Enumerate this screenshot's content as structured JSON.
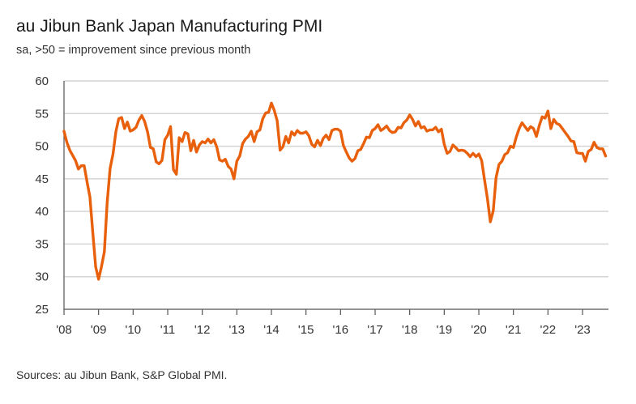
{
  "title": "au Jibun Bank Japan Manufacturing PMI",
  "subtitle": "sa, >50 = improvement since previous month",
  "source": "Sources: au Jibun Bank, S&P Global PMI.",
  "colors": {
    "series": "#e8600c",
    "grid": "#d4d4d4",
    "axis": "#555555",
    "text": "#333333"
  },
  "chart_data": {
    "type": "line",
    "title": "au Jibun Bank Japan Manufacturing PMI",
    "subtitle": "sa, >50 = improvement since previous month",
    "xlabel": "",
    "ylabel": "",
    "ylim": [
      25,
      60
    ],
    "yticks": [
      25,
      30,
      35,
      40,
      45,
      50,
      55,
      60
    ],
    "xticks": [
      {
        "label": "'08",
        "year": 2008
      },
      {
        "label": "'09",
        "year": 2009
      },
      {
        "label": "'10",
        "year": 2010
      },
      {
        "label": "'11",
        "year": 2011
      },
      {
        "label": "'12",
        "year": 2012
      },
      {
        "label": "'13",
        "year": 2013
      },
      {
        "label": "'14",
        "year": 2014
      },
      {
        "label": "'15",
        "year": 2015
      },
      {
        "label": "'16",
        "year": 2016
      },
      {
        "label": "'17",
        "year": 2017
      },
      {
        "label": "'18",
        "year": 2018
      },
      {
        "label": "'19",
        "year": 2019
      },
      {
        "label": "'20",
        "year": 2020
      },
      {
        "label": "'21",
        "year": 2021
      },
      {
        "label": "'22",
        "year": 2022
      },
      {
        "label": "'23",
        "year": 2023
      }
    ],
    "xlim": [
      2008.0,
      2023.75
    ],
    "grid": true,
    "legend": "none",
    "series": [
      {
        "name": "Manufacturing PMI",
        "x": [
          2008.0,
          2008.083,
          2008.167,
          2008.25,
          2008.333,
          2008.417,
          2008.5,
          2008.583,
          2008.667,
          2008.75,
          2008.833,
          2008.917,
          2009.0,
          2009.083,
          2009.167,
          2009.25,
          2009.333,
          2009.417,
          2009.5,
          2009.583,
          2009.667,
          2009.75,
          2009.833,
          2009.917,
          2010.0,
          2010.083,
          2010.167,
          2010.25,
          2010.333,
          2010.417,
          2010.5,
          2010.583,
          2010.667,
          2010.75,
          2010.833,
          2010.917,
          2011.0,
          2011.083,
          2011.167,
          2011.25,
          2011.333,
          2011.417,
          2011.5,
          2011.583,
          2011.667,
          2011.75,
          2011.833,
          2011.917,
          2012.0,
          2012.083,
          2012.167,
          2012.25,
          2012.333,
          2012.417,
          2012.5,
          2012.583,
          2012.667,
          2012.75,
          2012.833,
          2012.917,
          2013.0,
          2013.083,
          2013.167,
          2013.25,
          2013.333,
          2013.417,
          2013.5,
          2013.583,
          2013.667,
          2013.75,
          2013.833,
          2013.917,
          2014.0,
          2014.083,
          2014.167,
          2014.25,
          2014.333,
          2014.417,
          2014.5,
          2014.583,
          2014.667,
          2014.75,
          2014.833,
          2014.917,
          2015.0,
          2015.083,
          2015.167,
          2015.25,
          2015.333,
          2015.417,
          2015.5,
          2015.583,
          2015.667,
          2015.75,
          2015.833,
          2015.917,
          2016.0,
          2016.083,
          2016.167,
          2016.25,
          2016.333,
          2016.417,
          2016.5,
          2016.583,
          2016.667,
          2016.75,
          2016.833,
          2016.917,
          2017.0,
          2017.083,
          2017.167,
          2017.25,
          2017.333,
          2017.417,
          2017.5,
          2017.583,
          2017.667,
          2017.75,
          2017.833,
          2017.917,
          2018.0,
          2018.083,
          2018.167,
          2018.25,
          2018.333,
          2018.417,
          2018.5,
          2018.583,
          2018.667,
          2018.75,
          2018.833,
          2018.917,
          2019.0,
          2019.083,
          2019.167,
          2019.25,
          2019.333,
          2019.417,
          2019.5,
          2019.583,
          2019.667,
          2019.75,
          2019.833,
          2019.917,
          2020.0,
          2020.083,
          2020.167,
          2020.25,
          2020.333,
          2020.417,
          2020.5,
          2020.583,
          2020.667,
          2020.75,
          2020.833,
          2020.917,
          2021.0,
          2021.083,
          2021.167,
          2021.25,
          2021.333,
          2021.417,
          2021.5,
          2021.583,
          2021.667,
          2021.75,
          2021.833,
          2021.917,
          2022.0,
          2022.083,
          2022.167,
          2022.25,
          2022.333,
          2022.417,
          2022.5,
          2022.583,
          2022.667,
          2022.75,
          2022.833,
          2022.917,
          2023.0,
          2023.083,
          2023.167,
          2023.25,
          2023.333,
          2023.417,
          2023.5,
          2023.583,
          2023.667
        ],
        "values": [
          52.3,
          50.6,
          49.4,
          48.6,
          47.8,
          46.5,
          47.0,
          47.0,
          44.5,
          42.2,
          36.8,
          31.5,
          29.6,
          31.5,
          33.8,
          41.4,
          46.6,
          48.8,
          52.2,
          54.2,
          54.4,
          52.7,
          53.7,
          52.3,
          52.5,
          52.9,
          54.0,
          54.7,
          53.8,
          52.2,
          49.8,
          49.6,
          47.6,
          47.3,
          47.8,
          51.0,
          51.7,
          53.0,
          46.4,
          45.7,
          51.3,
          50.7,
          52.1,
          51.9,
          49.3,
          50.9,
          49.1,
          50.2,
          50.7,
          50.5,
          51.1,
          50.5,
          51.0,
          49.9,
          47.9,
          47.7,
          48.0,
          46.9,
          46.5,
          45.0,
          47.7,
          48.5,
          50.4,
          51.1,
          51.5,
          52.3,
          50.7,
          52.2,
          52.5,
          54.2,
          55.1,
          55.2,
          56.6,
          55.5,
          53.9,
          49.4,
          49.9,
          51.5,
          50.5,
          52.2,
          51.7,
          52.4,
          52.0,
          52.0,
          52.2,
          51.6,
          50.3,
          49.9,
          50.9,
          50.1,
          51.2,
          51.7,
          51.0,
          52.4,
          52.6,
          52.6,
          52.3,
          50.1,
          49.1,
          48.2,
          47.7,
          48.1,
          49.3,
          49.5,
          50.4,
          51.4,
          51.3,
          52.4,
          52.7,
          53.3,
          52.4,
          52.7,
          53.1,
          52.4,
          52.1,
          52.2,
          52.9,
          52.8,
          53.6,
          54.0,
          54.8,
          54.1,
          53.1,
          53.8,
          52.8,
          53.0,
          52.3,
          52.5,
          52.5,
          52.9,
          52.2,
          52.6,
          50.3,
          48.9,
          49.2,
          50.2,
          49.8,
          49.3,
          49.4,
          49.3,
          48.9,
          48.4,
          48.9,
          48.4,
          48.8,
          47.8,
          44.8,
          41.9,
          38.4,
          40.1,
          45.2,
          47.2,
          47.7,
          48.7,
          49.0,
          50.0,
          49.8,
          51.4,
          52.7,
          53.6,
          53.0,
          52.4,
          53.0,
          52.7,
          51.5,
          53.2,
          54.5,
          54.3,
          55.4,
          52.7,
          54.1,
          53.5,
          53.3,
          52.7,
          52.1,
          51.5,
          50.8,
          50.7,
          49.0,
          48.9,
          48.9,
          47.7,
          49.2,
          49.5,
          50.6,
          49.8,
          49.6,
          49.6,
          48.5
        ]
      }
    ]
  }
}
